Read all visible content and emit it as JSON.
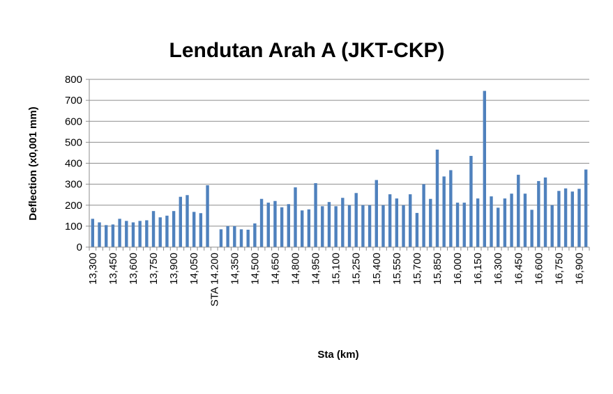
{
  "chart_data": {
    "type": "bar",
    "title": "Lendutan Arah A (JKT-CKP)",
    "x_label": "Sta (km)",
    "y_label": "Deflection (x0,001 mm)",
    "categories": [
      "13,300",
      null,
      null,
      "13,450",
      null,
      null,
      "13,600",
      null,
      null,
      "13,750",
      null,
      null,
      "13,900",
      null,
      null,
      "14,050",
      null,
      null,
      "STA 14.200",
      null,
      null,
      "14,350",
      null,
      null,
      "14,500",
      null,
      null,
      "14,650",
      null,
      null,
      "14,800",
      null,
      null,
      "14,950",
      null,
      null,
      "15,100",
      null,
      null,
      "15,250",
      null,
      null,
      "15,400",
      null,
      null,
      "15,550",
      null,
      null,
      "15,700",
      null,
      null,
      "15,850",
      null,
      null,
      "16,000",
      null,
      null,
      "16,150",
      null,
      null,
      "16,300",
      null,
      null,
      "16,450",
      null,
      null,
      "16,600",
      null,
      null,
      "16,750",
      null,
      null,
      "16,900",
      null
    ],
    "values": [
      135,
      118,
      105,
      108,
      135,
      125,
      118,
      125,
      128,
      172,
      142,
      150,
      172,
      240,
      248,
      168,
      162,
      295,
      null,
      85,
      100,
      100,
      85,
      83,
      113,
      230,
      212,
      220,
      190,
      205,
      285,
      175,
      180,
      305,
      195,
      215,
      195,
      235,
      200,
      258,
      200,
      200,
      320,
      200,
      252,
      232,
      200,
      252,
      163,
      300,
      230,
      465,
      337,
      367,
      212,
      212,
      435,
      232,
      745,
      242,
      188,
      232,
      255,
      345,
      255,
      178,
      315,
      332,
      200,
      268,
      280,
      265,
      278,
      370
    ],
    "color": "#4f81bd",
    "ylim": [
      0,
      800
    ],
    "yticks": [
      0,
      100,
      200,
      300,
      400,
      500,
      600,
      700,
      800
    ],
    "grid": true
  }
}
